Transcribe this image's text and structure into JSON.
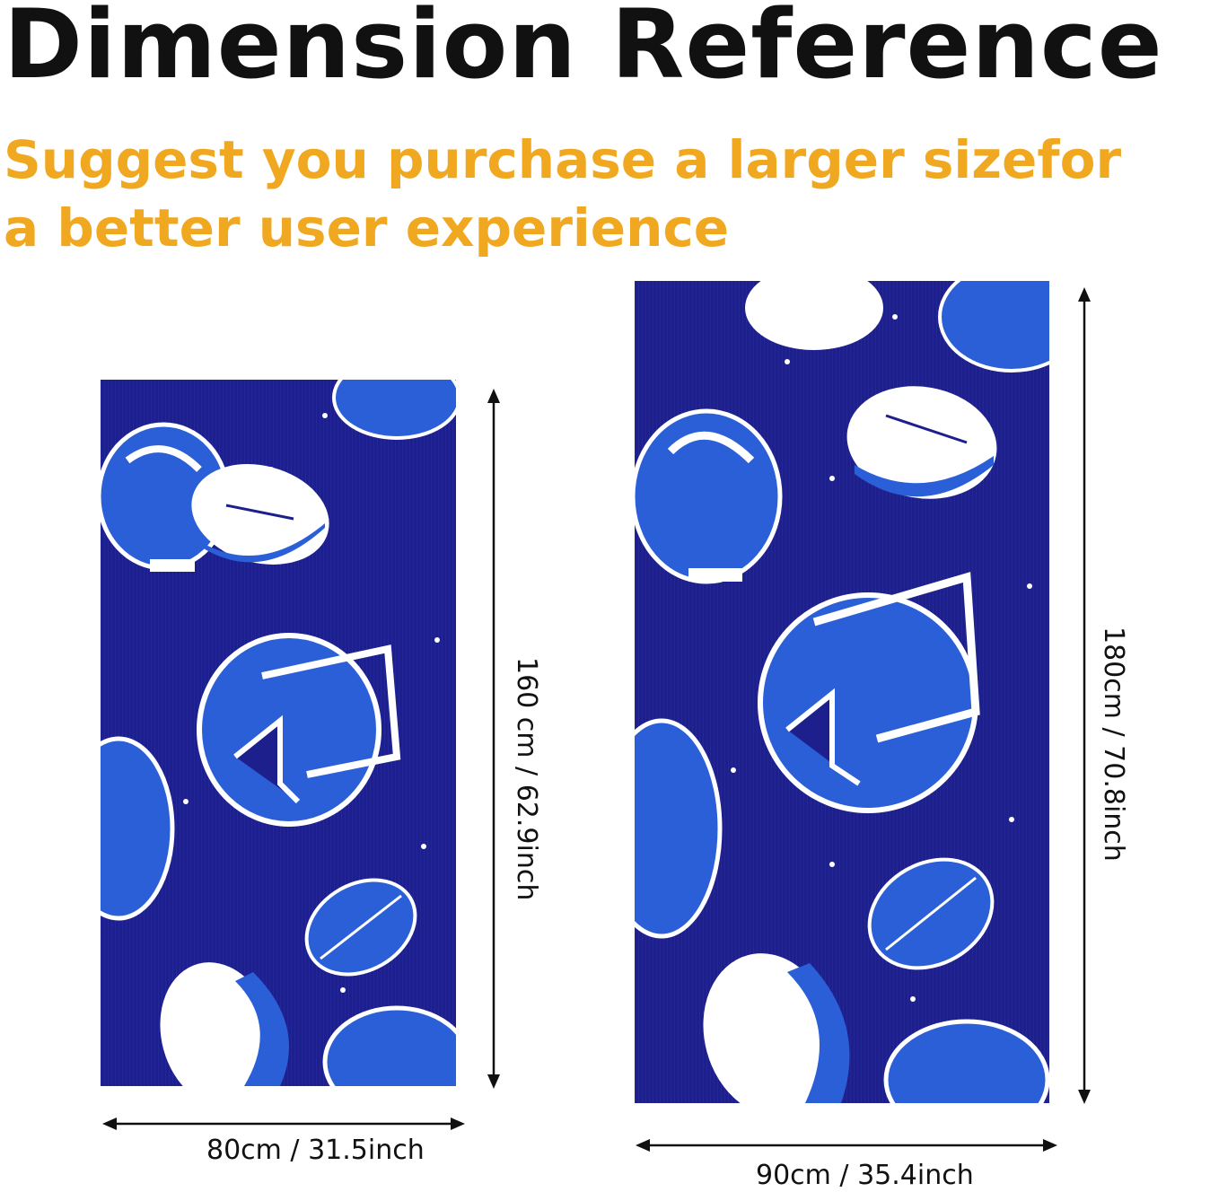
{
  "header": {
    "title": "Dimension Reference",
    "subtitle_line1": "Suggest you purchase a larger sizefor",
    "subtitle_line2": "a better user experience"
  },
  "colors": {
    "accent": "#f0a820",
    "towel_base": "#1d1f8c",
    "towel_print": "#2a5fd8",
    "towel_highlight": "#ffffff",
    "arrow": "#111111"
  },
  "products": [
    {
      "name": "small-towel",
      "width_label": "80cm / 31.5inch",
      "height_label": "160 cm / 62.9inch"
    },
    {
      "name": "large-towel",
      "width_label": "90cm / 35.4inch",
      "height_label": "180cm / 70.8inch"
    }
  ],
  "print_icons": [
    "football-helmet-icon",
    "football-icon",
    "star-icon"
  ]
}
